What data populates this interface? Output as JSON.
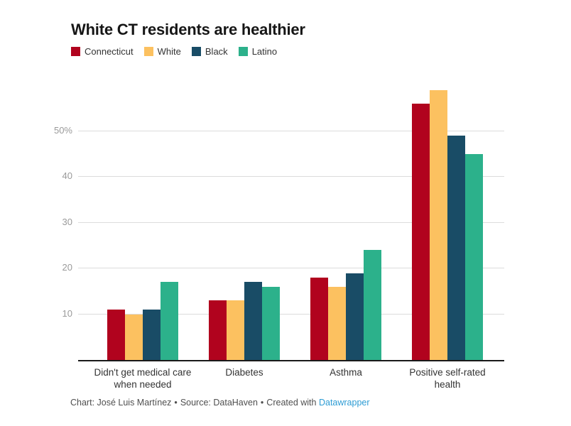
{
  "header": {
    "title": "White CT residents are healthier"
  },
  "legend": {
    "items": [
      {
        "label": "Connecticut",
        "color": "#b1031e"
      },
      {
        "label": "White",
        "color": "#fcc160"
      },
      {
        "label": "Black",
        "color": "#194c66"
      },
      {
        "label": "Latino",
        "color": "#2cb18b"
      }
    ]
  },
  "chart_data": {
    "type": "bar",
    "title": "White CT residents are healthier",
    "categories": [
      "Didn't get medical care\nwhen needed",
      "Diabetes",
      "Asthma",
      "Positive self-rated\nhealth"
    ],
    "series": [
      {
        "name": "Connecticut",
        "color": "#b1031e",
        "values": [
          11,
          13,
          18,
          56
        ]
      },
      {
        "name": "White",
        "color": "#fcc160",
        "values": [
          10,
          13,
          16,
          59
        ]
      },
      {
        "name": "Black",
        "color": "#194c66",
        "values": [
          11,
          17,
          19,
          49
        ]
      },
      {
        "name": "Latino",
        "color": "#2cb18b",
        "values": [
          17,
          16,
          24,
          45
        ]
      }
    ],
    "unit": "percent",
    "ylim": [
      0,
      60.5
    ],
    "yticks": [
      {
        "value": 10,
        "label": "10"
      },
      {
        "value": 20,
        "label": "20"
      },
      {
        "value": 30,
        "label": "30"
      },
      {
        "value": 40,
        "label": "40"
      },
      {
        "value": 50,
        "label": "50%"
      }
    ],
    "grid": "horizontal",
    "legend_position": "top-left"
  },
  "footer": {
    "credit": "Chart: José Luis Martínez",
    "separator": "•",
    "source": "Source: DataHaven",
    "created": "Created with",
    "link": "Datawrapper",
    "link_color": "#2d9cd4"
  }
}
